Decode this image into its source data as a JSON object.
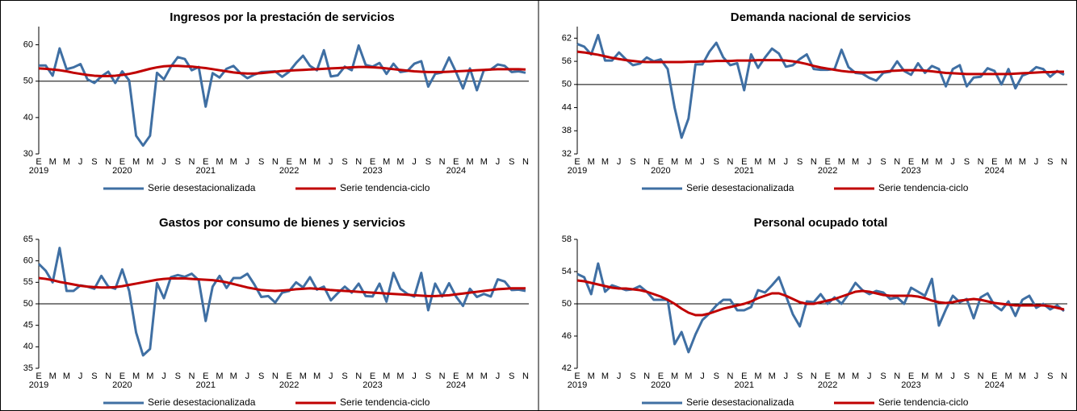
{
  "chart_data": [
    {
      "type": "line",
      "title": "Ingresos por la prestación de servicios",
      "categories": [
        "E",
        null,
        "M",
        null,
        "M",
        null,
        "J",
        null,
        "S",
        null,
        "N",
        null,
        "E",
        null,
        "M",
        null,
        "M",
        null,
        "J",
        null,
        "S",
        null,
        "N",
        null,
        "E",
        null,
        "M",
        null,
        "M",
        null,
        "J",
        null,
        "S",
        null,
        "N",
        null,
        "E",
        null,
        "M",
        null,
        "M",
        null,
        "J",
        null,
        "S",
        null,
        "N",
        null,
        "E",
        null,
        "M",
        null,
        "M",
        null,
        "J",
        null,
        "S",
        null,
        "N",
        null,
        "E",
        null,
        "M",
        null,
        "M",
        null,
        "J",
        null,
        "S",
        null,
        "N"
      ],
      "year_labels": [
        "2019",
        "2020",
        "2021",
        "2022",
        "2023",
        "2024"
      ],
      "ylim": [
        30,
        65
      ],
      "yticks": [
        30,
        40,
        50,
        60
      ],
      "x_axis_at": 50,
      "series": [
        {
          "name": "Serie desestacionalizada",
          "color": "#3f6fa3",
          "values": [
            54.3,
            54.3,
            51.5,
            59,
            53.3,
            53.8,
            54.7,
            50.5,
            49.5,
            51.3,
            52.6,
            49.5,
            52.7,
            50.2,
            35,
            32.3,
            35,
            52.3,
            50.5,
            54,
            56.6,
            56.1,
            53,
            53.9,
            43,
            52.2,
            51,
            53.4,
            54.2,
            52.2,
            50.8,
            51.8,
            52.5,
            52.6,
            52.7,
            51.2,
            52.6,
            55,
            57,
            54.2,
            53,
            58.5,
            51.3,
            51.6,
            54,
            53,
            59.8,
            54.5,
            54,
            55,
            52,
            54.8,
            52.5,
            52.8,
            54.8,
            55.5,
            48.5,
            52,
            52.4,
            56.5,
            52.5,
            48,
            53.5,
            47.5,
            53,
            53.2,
            54.6,
            54.2,
            52.5,
            52.7,
            52.3
          ]
        },
        {
          "name": "Serie tendencia-ciclo",
          "color": "#c00000",
          "values": [
            53.5,
            53.4,
            53.2,
            53,
            52.7,
            52.3,
            52,
            51.7,
            51.5,
            51.4,
            51.4,
            51.5,
            51.7,
            52,
            52.4,
            52.9,
            53.4,
            53.8,
            54.1,
            54.2,
            54.2,
            54.1,
            54,
            53.8,
            53.6,
            53.3,
            53,
            52.7,
            52.4,
            52.2,
            52.1,
            52.1,
            52.2,
            52.4,
            52.6,
            52.8,
            52.9,
            53,
            53.1,
            53.2,
            53.3,
            53.4,
            53.5,
            53.6,
            53.7,
            53.8,
            53.9,
            53.9,
            53.8,
            53.7,
            53.5,
            53.3,
            53.1,
            52.9,
            52.7,
            52.6,
            52.5,
            52.5,
            52.5,
            52.6,
            52.7,
            52.8,
            52.9,
            53,
            53.1,
            53.2,
            53.3,
            53.3,
            53.3,
            53.3,
            53.2
          ]
        }
      ]
    },
    {
      "type": "line",
      "title": "Demanda nacional de servicios",
      "categories": [
        "E",
        null,
        "M",
        null,
        "M",
        null,
        "J",
        null,
        "S",
        null,
        "N",
        null,
        "E",
        null,
        "M",
        null,
        "M",
        null,
        "J",
        null,
        "S",
        null,
        "N",
        null,
        "E",
        null,
        "M",
        null,
        "M",
        null,
        "J",
        null,
        "S",
        null,
        "N",
        null,
        "E",
        null,
        "M",
        null,
        "M",
        null,
        "J",
        null,
        "S",
        null,
        "N",
        null,
        "E",
        null,
        "M",
        null,
        "M",
        null,
        "J",
        null,
        "S",
        null,
        "N",
        null,
        "E",
        null,
        "M",
        null,
        "M",
        null,
        "J",
        null,
        "S",
        null,
        "N"
      ],
      "year_labels": [
        "2019",
        "2020",
        "2021",
        "2022",
        "2023",
        "2024"
      ],
      "ylim": [
        32,
        65
      ],
      "yticks": [
        32,
        38,
        44,
        50,
        56,
        62
      ],
      "x_axis_at": 50,
      "series": [
        {
          "name": "Serie desestacionalizada",
          "color": "#3f6fa3",
          "values": [
            60.5,
            59.8,
            57.8,
            62.8,
            56.2,
            56.2,
            58.3,
            56.5,
            55,
            55.4,
            57,
            56,
            56.5,
            54,
            44,
            36.2,
            41.2,
            55.2,
            55.2,
            58.5,
            60.8,
            57,
            55,
            55.5,
            48.5,
            57.8,
            54.3,
            57,
            59.3,
            58,
            54.6,
            55,
            56.6,
            57.8,
            54,
            53.8,
            53.8,
            54,
            59,
            54.5,
            53,
            52.8,
            51.7,
            51,
            53,
            53.3,
            56,
            53.5,
            52.5,
            55.5,
            53,
            54.8,
            54,
            49.5,
            54,
            55,
            49.5,
            51.8,
            52,
            54.2,
            53.5,
            50,
            54,
            49,
            52.3,
            53,
            54.5,
            54,
            52,
            53.5,
            52.5
          ]
        },
        {
          "name": "Serie tendencia-ciclo",
          "color": "#c00000",
          "values": [
            58.5,
            58.3,
            58,
            57.7,
            57.3,
            56.9,
            56.6,
            56.3,
            56.1,
            55.9,
            55.8,
            55.8,
            55.8,
            55.8,
            55.8,
            55.8,
            55.9,
            55.9,
            56,
            56,
            56.1,
            56.1,
            56.1,
            56.2,
            56.2,
            56.2,
            56.3,
            56.3,
            56.3,
            56.3,
            56.2,
            56,
            55.7,
            55.3,
            54.8,
            54.4,
            54.1,
            53.8,
            53.5,
            53.3,
            53.2,
            53.1,
            53.1,
            53.2,
            53.3,
            53.5,
            53.6,
            53.7,
            53.7,
            53.7,
            53.6,
            53.4,
            53.2,
            53,
            52.9,
            52.8,
            52.7,
            52.7,
            52.7,
            52.7,
            52.7,
            52.7,
            52.7,
            52.8,
            52.9,
            53,
            53.1,
            53.2,
            53.2,
            53.3,
            53.3
          ]
        }
      ]
    },
    {
      "type": "line",
      "title": "Gastos por consumo de bienes y servicios",
      "categories": [
        "E",
        null,
        "M",
        null,
        "M",
        null,
        "J",
        null,
        "S",
        null,
        "N",
        null,
        "E",
        null,
        "M",
        null,
        "M",
        null,
        "J",
        null,
        "S",
        null,
        "N",
        null,
        "E",
        null,
        "M",
        null,
        "M",
        null,
        "J",
        null,
        "S",
        null,
        "N",
        null,
        "E",
        null,
        "M",
        null,
        "M",
        null,
        "J",
        null,
        "S",
        null,
        "N",
        null,
        "E",
        null,
        "M",
        null,
        "M",
        null,
        "J",
        null,
        "S",
        null,
        "N",
        null,
        "E",
        null,
        "M",
        null,
        "M",
        null,
        "J",
        null,
        "S",
        null,
        "N"
      ],
      "year_labels": [
        "2019",
        "2020",
        "2021",
        "2022",
        "2023",
        "2024"
      ],
      "ylim": [
        35,
        65
      ],
      "yticks": [
        35,
        40,
        45,
        50,
        55,
        60,
        65
      ],
      "x_axis_at": 50,
      "series": [
        {
          "name": "Serie desestacionalizada",
          "color": "#3f6fa3",
          "values": [
            59.3,
            57.7,
            55,
            63,
            53,
            53,
            54.3,
            54,
            53.5,
            56.5,
            54,
            53.5,
            58,
            53,
            43.3,
            38,
            39.5,
            54.8,
            51.3,
            56.2,
            56.7,
            56.3,
            57,
            55.5,
            46,
            54,
            56.5,
            53.7,
            56,
            56,
            57,
            54.5,
            51.6,
            51.8,
            50.3,
            52.6,
            53,
            55,
            53.8,
            56.2,
            53.3,
            54,
            50.8,
            52.5,
            54,
            52.6,
            54.7,
            51.8,
            51.7,
            54.7,
            50.5,
            57.2,
            53.5,
            52.3,
            51.7,
            57.2,
            48.5,
            54.7,
            51.7,
            54.8,
            51.7,
            49.5,
            53.5,
            51.6,
            52.3,
            51.7,
            55.7,
            55.2,
            53.2,
            53.3,
            53
          ]
        },
        {
          "name": "Serie tendencia-ciclo",
          "color": "#c00000",
          "values": [
            56,
            55.8,
            55.5,
            55.1,
            54.8,
            54.5,
            54.2,
            54,
            53.9,
            53.8,
            53.8,
            53.9,
            54.1,
            54.4,
            54.7,
            55,
            55.3,
            55.6,
            55.8,
            55.9,
            55.9,
            55.9,
            55.8,
            55.7,
            55.6,
            55.5,
            55.3,
            55,
            54.6,
            54.2,
            53.8,
            53.5,
            53.2,
            53.1,
            53,
            53.1,
            53.2,
            53.4,
            53.5,
            53.6,
            53.5,
            53.4,
            53.2,
            53.1,
            53,
            52.9,
            52.8,
            52.7,
            52.6,
            52.5,
            52.4,
            52.3,
            52.2,
            52.1,
            52,
            51.9,
            51.8,
            51.8,
            51.9,
            52,
            52.2,
            52.4,
            52.6,
            52.8,
            53,
            53.2,
            53.4,
            53.5,
            53.6,
            53.6,
            53.6
          ]
        }
      ]
    },
    {
      "type": "line",
      "title": "Personal ocupado total",
      "categories": [
        "E",
        null,
        "M",
        null,
        "M",
        null,
        "J",
        null,
        "S",
        null,
        "N",
        null,
        "E",
        null,
        "M",
        null,
        "M",
        null,
        "J",
        null,
        "S",
        null,
        "N",
        null,
        "E",
        null,
        "M",
        null,
        "M",
        null,
        "J",
        null,
        "S",
        null,
        "N",
        null,
        "E",
        null,
        "M",
        null,
        "M",
        null,
        "J",
        null,
        "S",
        null,
        "N",
        null,
        "E",
        null,
        "M",
        null,
        "M",
        null,
        "J",
        null,
        "S",
        null,
        "N",
        null,
        "E",
        null,
        "M",
        null,
        "M",
        null,
        "J",
        null,
        "S",
        null,
        "N"
      ],
      "year_labels": [
        "2019",
        "2020",
        "2021",
        "2022",
        "2023",
        "2024"
      ],
      "ylim": [
        42,
        58
      ],
      "yticks": [
        42,
        46,
        50,
        54,
        58
      ],
      "x_axis_at": 50,
      "series": [
        {
          "name": "Serie desestacionalizada",
          "color": "#3f6fa3",
          "values": [
            53.7,
            53.3,
            51.2,
            55,
            51.5,
            52.3,
            52,
            51.7,
            51.8,
            52.2,
            51.5,
            50.5,
            50.5,
            50.5,
            45,
            46.5,
            44,
            46.2,
            48,
            48.8,
            49.8,
            50.5,
            50.5,
            49.2,
            49.2,
            49.6,
            51.7,
            51.4,
            52.3,
            53.3,
            51,
            48.7,
            47.2,
            50.3,
            50.2,
            51.2,
            50,
            50.8,
            50,
            51.2,
            52.6,
            51.7,
            51.2,
            51.6,
            51.4,
            50.6,
            50.8,
            50,
            52,
            51.5,
            51,
            53.1,
            47.3,
            49.3,
            51,
            50.2,
            50.6,
            48.2,
            50.8,
            51.3,
            49.8,
            49.2,
            50.3,
            48.5,
            50.5,
            51,
            49.5,
            50,
            49.3,
            49.8,
            49.1
          ]
        },
        {
          "name": "Serie tendencia-ciclo",
          "color": "#c00000",
          "values": [
            52.9,
            52.8,
            52.6,
            52.4,
            52.2,
            52,
            51.9,
            51.9,
            51.8,
            51.7,
            51.5,
            51.2,
            50.9,
            50.5,
            50,
            49.4,
            48.9,
            48.6,
            48.6,
            48.8,
            49.1,
            49.4,
            49.6,
            49.8,
            50,
            50.3,
            50.7,
            51,
            51.3,
            51.3,
            51,
            50.6,
            50.2,
            50,
            50,
            50.2,
            50.4,
            50.6,
            50.9,
            51.2,
            51.5,
            51.6,
            51.5,
            51.3,
            51.1,
            51,
            51,
            51,
            51,
            50.9,
            50.7,
            50.4,
            50.2,
            50.1,
            50.2,
            50.4,
            50.5,
            50.6,
            50.5,
            50.3,
            50.1,
            50,
            49.9,
            49.8,
            49.8,
            49.8,
            49.8,
            49.8,
            49.7,
            49.5,
            49.3
          ]
        }
      ]
    }
  ]
}
